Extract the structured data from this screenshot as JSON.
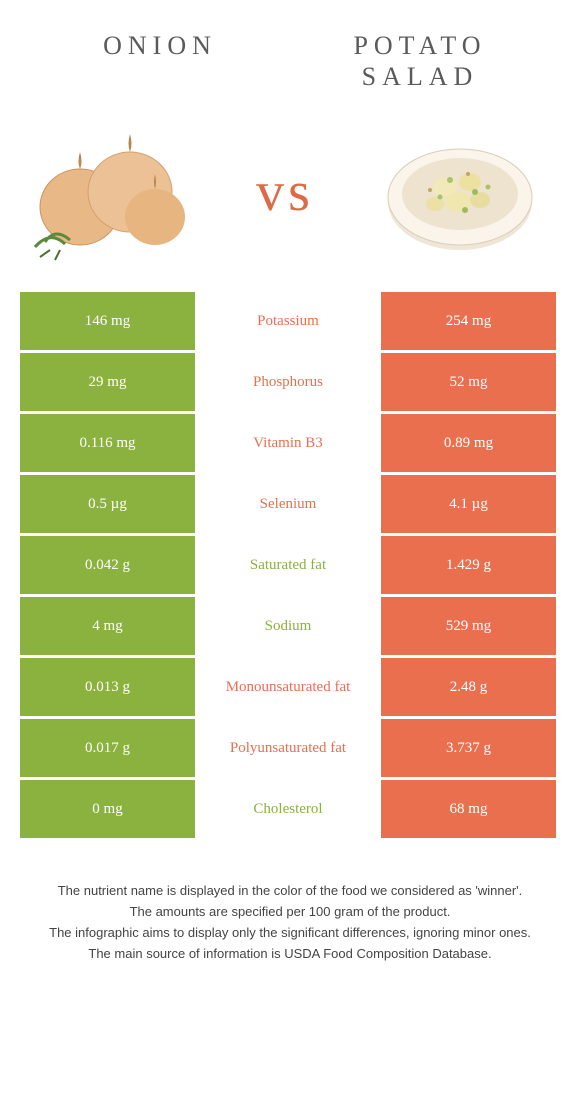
{
  "header": {
    "left_title": "ONION",
    "right_title": "POTATO SALAD"
  },
  "vs": "vs",
  "colors": {
    "left_bg": "#8bb13f",
    "right_bg": "#e96f4f",
    "left_text": "#ffffff",
    "right_text": "#ffffff",
    "vs_color": "#dd6b47"
  },
  "table": {
    "rows": [
      {
        "left": "146 mg",
        "label": "Potassium",
        "right": "254 mg",
        "winner": "right"
      },
      {
        "left": "29 mg",
        "label": "Phosphorus",
        "right": "52 mg",
        "winner": "right"
      },
      {
        "left": "0.116 mg",
        "label": "Vitamin B3",
        "right": "0.89 mg",
        "winner": "right"
      },
      {
        "left": "0.5 µg",
        "label": "Selenium",
        "right": "4.1 µg",
        "winner": "right"
      },
      {
        "left": "0.042 g",
        "label": "Saturated fat",
        "right": "1.429 g",
        "winner": "left"
      },
      {
        "left": "4 mg",
        "label": "Sodium",
        "right": "529 mg",
        "winner": "left"
      },
      {
        "left": "0.013 g",
        "label": "Monounsaturated fat",
        "right": "2.48 g",
        "winner": "right"
      },
      {
        "left": "0.017 g",
        "label": "Polyunsaturated fat",
        "right": "3.737 g",
        "winner": "right"
      },
      {
        "left": "0 mg",
        "label": "Cholesterol",
        "right": "68 mg",
        "winner": "left"
      }
    ]
  },
  "footer": {
    "line1": "The nutrient name is displayed in the color of the food we considered as 'winner'.",
    "line2": "The amounts are specified per 100 gram of the product.",
    "line3": "The infographic aims to display only the significant differences, ignoring minor ones.",
    "line4": "The main source of information is USDA Food Composition Database."
  }
}
